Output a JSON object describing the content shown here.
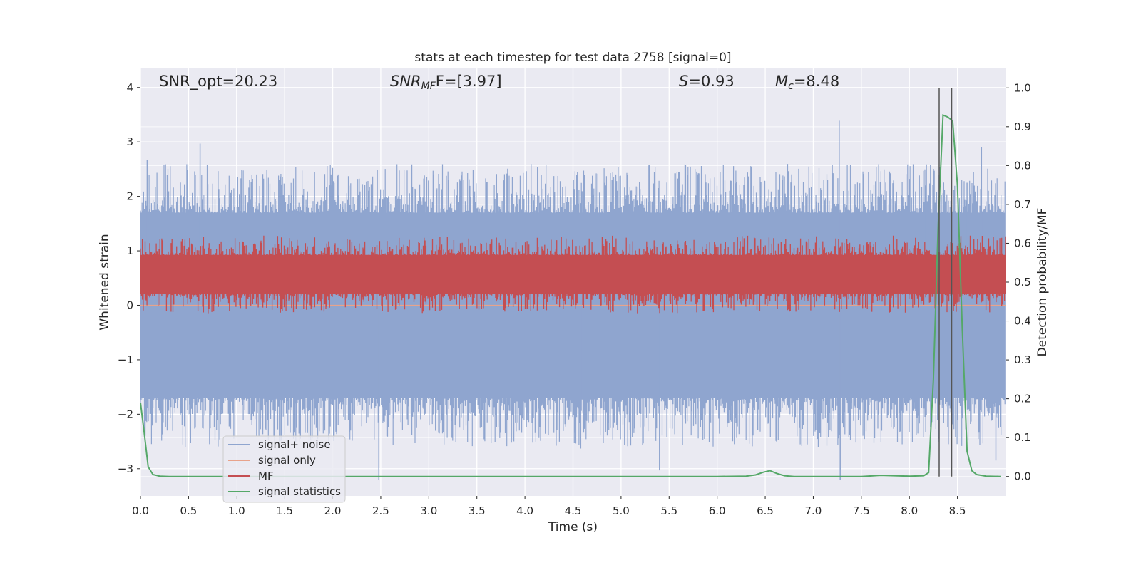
{
  "chart_data": {
    "type": "line",
    "title": "stats at each timestep for test data 2758 [signal=0]",
    "xlabel": "Time (s)",
    "ylabel": "Whitened strain",
    "y2label": "Detection probability/MF",
    "xlim": [
      0.0,
      9.0
    ],
    "ylim": [
      -3.5,
      4.35
    ],
    "y2lim": [
      -0.05,
      1.05
    ],
    "xticks": [
      0.0,
      0.5,
      1.0,
      1.5,
      2.0,
      2.5,
      3.0,
      3.5,
      4.0,
      4.5,
      5.0,
      5.5,
      6.0,
      6.5,
      7.0,
      7.5,
      8.0,
      8.5
    ],
    "xtick_labels": [
      "0.0",
      "0.5",
      "1.0",
      "1.5",
      "2.0",
      "2.5",
      "3.0",
      "3.5",
      "4.0",
      "4.5",
      "5.0",
      "5.5",
      "6.0",
      "6.5",
      "7.0",
      "7.5",
      "8.0",
      "8.5"
    ],
    "yticks": [
      -3,
      -2,
      -1,
      0,
      1,
      2,
      3,
      4
    ],
    "ytick_labels": [
      "−3",
      "−2",
      "−1",
      "0",
      "1",
      "2",
      "3",
      "4"
    ],
    "y2ticks": [
      0.0,
      0.1,
      0.2,
      0.3,
      0.4,
      0.5,
      0.6,
      0.7,
      0.8,
      0.9,
      1.0
    ],
    "y2tick_labels": [
      "0.0",
      "0.1",
      "0.2",
      "0.3",
      "0.4",
      "0.5",
      "0.6",
      "0.7",
      "0.8",
      "0.9",
      "1.0"
    ],
    "grid": true,
    "legend_position": "lower-left",
    "annotations": {
      "snr_opt": "SNR_opt=20.23",
      "snr_mf_sym": "SNR",
      "snr_mf_sub": "MF",
      "snr_mf_rest": "F=[3.97]",
      "s_sym": "S",
      "s_rest": "=0.93",
      "mc_sym": "M",
      "mc_sub": "c",
      "mc_rest": "=8.48"
    },
    "series": [
      {
        "name": "signal+ noise",
        "color": "#8fa5cf",
        "envelope_low": -1.8,
        "envelope_high": 1.8,
        "peaks": [
          [
            0.07,
            2.67
          ],
          [
            0.62,
            2.97
          ],
          [
            2.48,
            -3.2
          ],
          [
            4.58,
            -2.63
          ],
          [
            5.4,
            -3.03
          ],
          [
            7.27,
            3.39
          ],
          [
            7.28,
            -3.2
          ],
          [
            8.17,
            2.2
          ],
          [
            8.6,
            2.25
          ],
          [
            8.75,
            2.9
          ],
          [
            8.9,
            -2.85
          ]
        ]
      },
      {
        "name": "signal only",
        "color": "#e8a38b",
        "values_flat": 0.0
      },
      {
        "name": "MF",
        "color": "#c44e52",
        "axis": "right",
        "band_low": 0.47,
        "band_high": 0.57
      },
      {
        "name": "signal statistics",
        "color": "#55a868",
        "axis": "right",
        "x": [
          0.0,
          0.02,
          0.04,
          0.08,
          0.13,
          0.2,
          0.3,
          1.0,
          2.0,
          3.0,
          4.0,
          5.0,
          6.0,
          6.3,
          6.4,
          6.48,
          6.55,
          6.62,
          6.7,
          6.8,
          7.0,
          7.5,
          7.7,
          8.0,
          8.15,
          8.2,
          8.25,
          8.3,
          8.35,
          8.4,
          8.45,
          8.5,
          8.55,
          8.6,
          8.65,
          8.7,
          8.8,
          8.95
        ],
        "y": [
          0.19,
          0.15,
          0.11,
          0.025,
          0.005,
          0.001,
          0.0,
          0.0,
          0.0,
          0.0,
          0.0,
          0.0,
          0.0,
          0.001,
          0.004,
          0.011,
          0.015,
          0.008,
          0.002,
          0.0,
          0.0,
          0.0,
          0.003,
          0.001,
          0.002,
          0.01,
          0.25,
          0.65,
          0.93,
          0.925,
          0.915,
          0.75,
          0.38,
          0.065,
          0.015,
          0.005,
          0.001,
          0.0
        ]
      }
    ],
    "vertical_lines": [
      8.31,
      8.44
    ],
    "vertical_line_color": "#555555"
  }
}
